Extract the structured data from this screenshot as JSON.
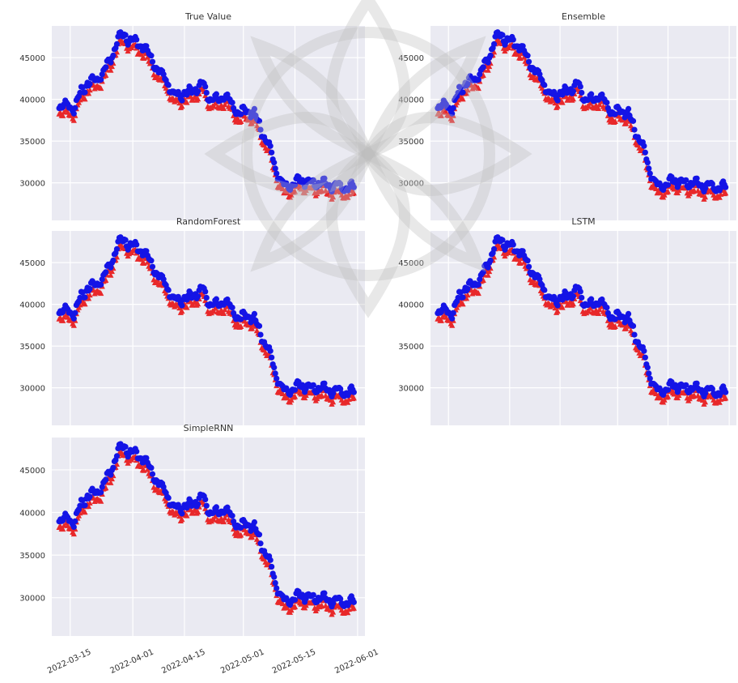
{
  "chart_data": [
    {
      "type": "scatter",
      "title": "True Value",
      "ylim": [
        25500,
        48800
      ],
      "yticks": [
        30000,
        35000,
        40000,
        45000
      ],
      "xlim": [
        "2022-03-10",
        "2022-06-03"
      ],
      "grid": true,
      "series": [
        {
          "marker": "circle",
          "color": "#0000ff"
        },
        {
          "marker": "triangle",
          "color": "#ff0000"
        }
      ]
    },
    {
      "type": "scatter",
      "title": "Ensemble",
      "ylim": [
        25500,
        48800
      ],
      "yticks": [
        30000,
        35000,
        40000,
        45000
      ],
      "xlim": [
        "2022-03-10",
        "2022-06-03"
      ],
      "grid": true,
      "series": [
        {
          "marker": "circle",
          "color": "#0000ff"
        },
        {
          "marker": "triangle",
          "color": "#ff0000"
        }
      ]
    },
    {
      "type": "scatter",
      "title": "RandomForest",
      "ylim": [
        25500,
        48800
      ],
      "yticks": [
        30000,
        35000,
        40000,
        45000
      ],
      "xlim": [
        "2022-03-10",
        "2022-06-03"
      ],
      "grid": true,
      "series": [
        {
          "marker": "circle",
          "color": "#0000ff"
        },
        {
          "marker": "triangle",
          "color": "#ff0000"
        }
      ]
    },
    {
      "type": "scatter",
      "title": "LSTM",
      "ylim": [
        25500,
        48800
      ],
      "yticks": [
        30000,
        35000,
        40000,
        45000
      ],
      "xlim": [
        "2022-03-10",
        "2022-06-03"
      ],
      "grid": true,
      "series": [
        {
          "marker": "circle",
          "color": "#0000ff"
        },
        {
          "marker": "triangle",
          "color": "#ff0000"
        }
      ]
    },
    {
      "type": "scatter",
      "title": "SimpleRNN",
      "ylim": [
        25500,
        48800
      ],
      "yticks": [
        30000,
        35000,
        40000,
        45000
      ],
      "xlim": [
        "2022-03-10",
        "2022-06-03"
      ],
      "grid": true,
      "xticks": [
        "2022-03-15",
        "2022-04-01",
        "2022-04-15",
        "2022-05-01",
        "2022-05-15",
        "2022-06-01"
      ],
      "series": [
        {
          "marker": "circle",
          "color": "#0000ff"
        },
        {
          "marker": "triangle",
          "color": "#ff0000"
        }
      ]
    }
  ],
  "price_trace": {
    "x": [
      "2022-03-12",
      "2022-03-14",
      "2022-03-16",
      "2022-03-18",
      "2022-03-20",
      "2022-03-22",
      "2022-03-24",
      "2022-03-26",
      "2022-03-28",
      "2022-03-30",
      "2022-03-31",
      "2022-04-02",
      "2022-04-04",
      "2022-04-06",
      "2022-04-08",
      "2022-04-10",
      "2022-04-12",
      "2022-04-14",
      "2022-04-16",
      "2022-04-18",
      "2022-04-20",
      "2022-04-22",
      "2022-04-24",
      "2022-04-26",
      "2022-04-28",
      "2022-04-30",
      "2022-05-02",
      "2022-05-04",
      "2022-05-06",
      "2022-05-08",
      "2022-05-10",
      "2022-05-12",
      "2022-05-14",
      "2022-05-16",
      "2022-05-18",
      "2022-05-20",
      "2022-05-22",
      "2022-05-24",
      "2022-05-26",
      "2022-05-28",
      "2022-05-31"
    ],
    "y": [
      39000,
      38900,
      38600,
      40600,
      41800,
      41900,
      43000,
      44500,
      47000,
      47500,
      46800,
      46500,
      46000,
      44500,
      43000,
      42200,
      40100,
      40300,
      40400,
      41000,
      41500,
      39800,
      39600,
      40300,
      38900,
      38000,
      38500,
      37900,
      35800,
      34000,
      31000,
      29200,
      29400,
      29900,
      30000,
      29500,
      29800,
      29300,
      29500,
      29100,
      29300
    ]
  }
}
